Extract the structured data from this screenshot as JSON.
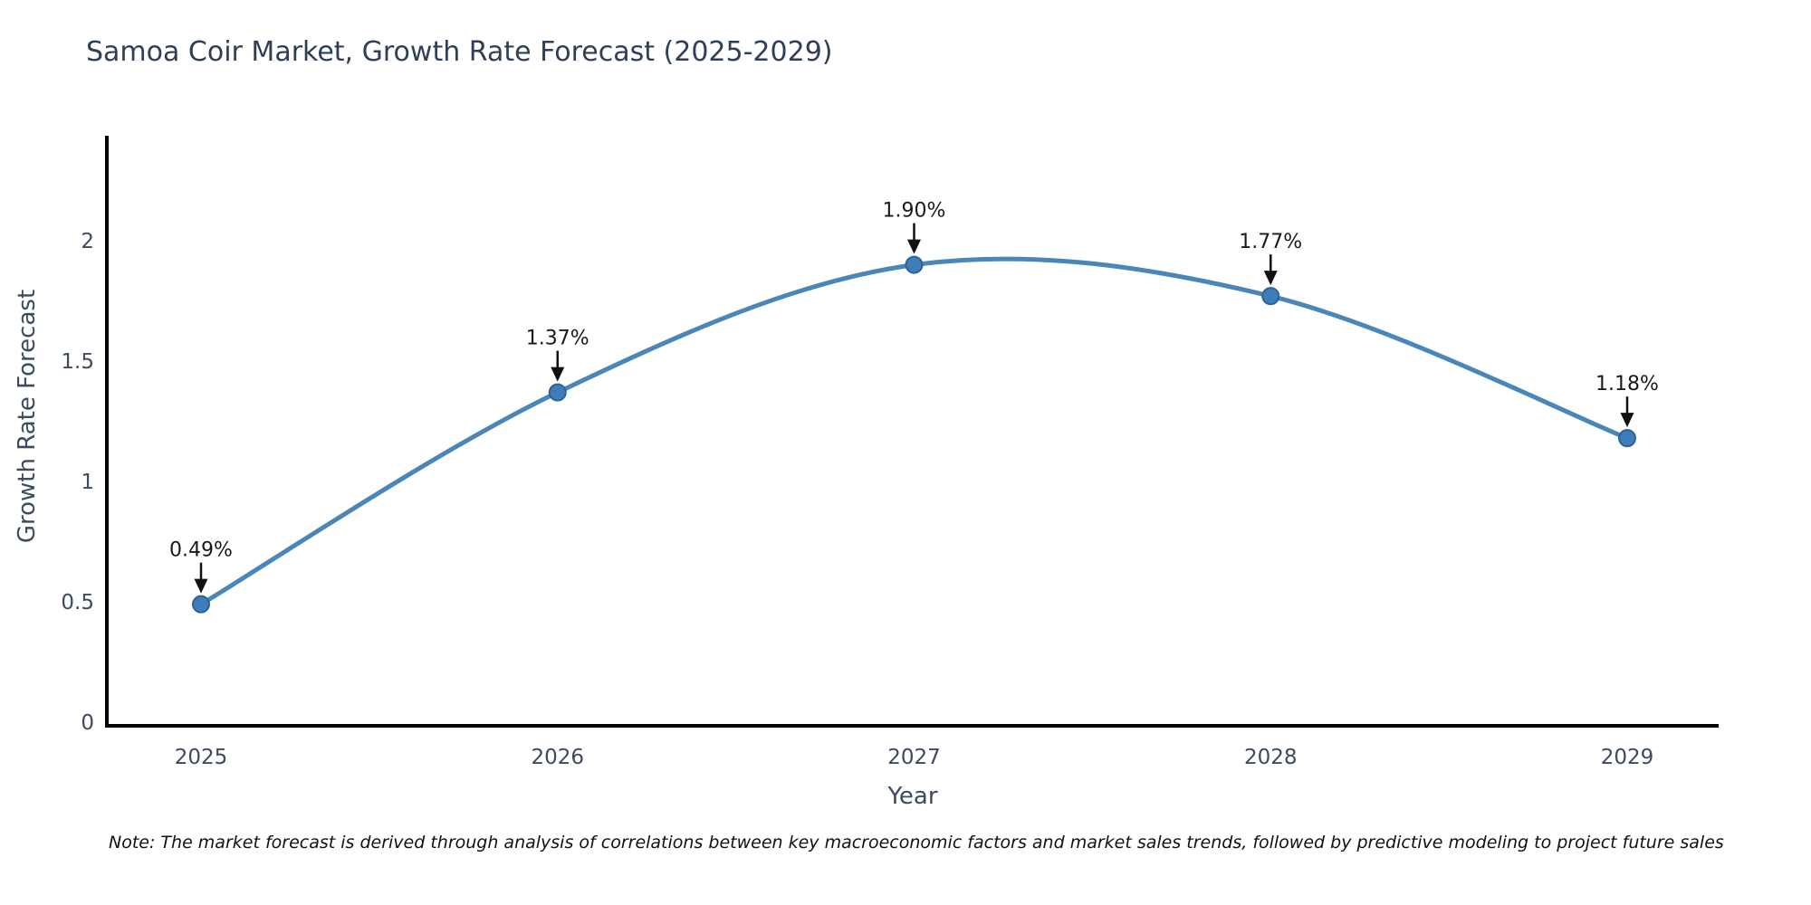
{
  "title": "Samoa Coir Market, Growth Rate Forecast (2025-2029)",
  "note": "Note: The market forecast is derived through analysis of correlations between key macroeconomic factors and market sales trends, followed by predictive modeling to project future sales",
  "chart_data": {
    "type": "line",
    "title": "Samoa Coir Market, Growth Rate Forecast (2025-2029)",
    "xlabel": "Year",
    "ylabel": "Growth Rate Forecast",
    "x": [
      2025,
      2026,
      2027,
      2028,
      2029
    ],
    "categories": [
      "2025",
      "2026",
      "2027",
      "2028",
      "2029"
    ],
    "values": [
      0.49,
      1.37,
      1.9,
      1.77,
      1.18
    ],
    "point_labels": [
      "0.49%",
      "1.37%",
      "1.90%",
      "1.77%",
      "1.18%"
    ],
    "yticks": [
      0,
      0.5,
      1,
      1.5,
      2
    ],
    "ytick_labels": [
      "0",
      "0.5",
      "1",
      "1.5",
      "2"
    ],
    "ylim": [
      0,
      2.45
    ],
    "grid": false,
    "legend_position": "none",
    "smooth_line": true,
    "line_color": "#4a86b8",
    "marker_color": "#3e7db7",
    "marker_edge_color": "#2d6396",
    "axis_color": "#000000",
    "annotation_color": "#111111"
  },
  "colors": {
    "title_text": "#2f3f58",
    "tick_text": "#3c4b60",
    "background": "#ffffff",
    "note_text": "#111111"
  }
}
